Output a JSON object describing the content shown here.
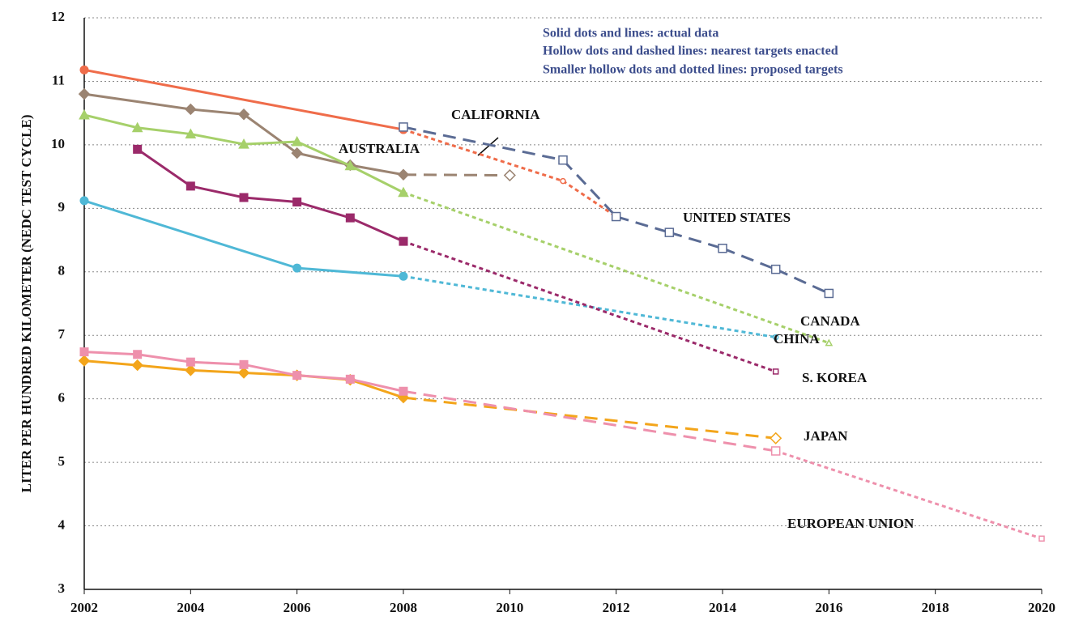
{
  "chart_data": {
    "type": "line",
    "y_label": "LITER PER HUNDRED KILOMETER (NEDC TEST CYCLE)",
    "annotations": [
      "Solid dots and lines: actual data",
      "Hollow dots and dashed lines: nearest targets enacted",
      "Smaller hollow dots and dotted lines: proposed targets"
    ],
    "xlim": [
      2002,
      2020
    ],
    "xticks": [
      2002,
      2004,
      2006,
      2008,
      2010,
      2012,
      2014,
      2016,
      2018,
      2020
    ],
    "ylim": [
      3,
      12
    ],
    "yticks": [
      3,
      4,
      5,
      6,
      7,
      8,
      9,
      10,
      11,
      12
    ],
    "grid": true,
    "series": [
      {
        "name": "CALIFORNIA",
        "color": "#ef6c4a",
        "marker": "circle",
        "x": [
          2002,
          2008
        ],
        "values": [
          11.18,
          10.24
        ],
        "targets": [
          {
            "style": "dotted",
            "x": [
              2011,
              2012
            ],
            "values": [
              9.43,
              8.87
            ]
          }
        ]
      },
      {
        "name": "UNITED STATES",
        "color": "#5a6b94",
        "marker": "square",
        "x": [],
        "values": [],
        "targets": [
          {
            "style": "dashed",
            "x": [
              2008,
              2011,
              2012,
              2013,
              2014,
              2015,
              2016
            ],
            "values": [
              10.28,
              9.76,
              8.87,
              8.62,
              8.37,
              8.04,
              7.66
            ]
          }
        ]
      },
      {
        "name": "AUSTRALIA",
        "color": "#9b8472",
        "marker": "diamond",
        "x": [
          2002,
          2004,
          2005,
          2006,
          2007,
          2008
        ],
        "values": [
          10.8,
          10.56,
          10.48,
          9.87,
          9.68,
          9.53
        ],
        "targets": [
          {
            "style": "dashed",
            "x": [
              2010
            ],
            "values": [
              9.52
            ]
          }
        ]
      },
      {
        "name": "CANADA",
        "color": "#a6d06a",
        "marker": "triangle",
        "x": [
          2002,
          2003,
          2004,
          2005,
          2006,
          2007,
          2008
        ],
        "values": [
          10.47,
          10.27,
          10.17,
          10.01,
          10.05,
          9.67,
          9.25
        ],
        "targets": [
          {
            "style": "dotted",
            "x": [
              2016
            ],
            "values": [
              6.88
            ]
          }
        ]
      },
      {
        "name": "CHINA",
        "color": "#4fb8d6",
        "marker": "circle",
        "x": [
          2002,
          2006,
          2008
        ],
        "values": [
          9.12,
          8.06,
          7.93
        ],
        "targets": [
          {
            "style": "dotted",
            "x": [
              2015
            ],
            "values": [
              6.97
            ]
          }
        ]
      },
      {
        "name": "S. KOREA",
        "color": "#9b2a6a",
        "marker": "square",
        "x": [
          2003,
          2004,
          2005,
          2006,
          2007,
          2008
        ],
        "values": [
          9.93,
          9.35,
          9.17,
          9.1,
          8.85,
          8.48
        ],
        "targets": [
          {
            "style": "dotted",
            "x": [
              2015
            ],
            "values": [
              6.43
            ]
          }
        ]
      },
      {
        "name": "JAPAN",
        "color": "#f3a51b",
        "marker": "diamond",
        "x": [
          2002,
          2003,
          2004,
          2005,
          2006,
          2007,
          2008
        ],
        "values": [
          6.6,
          6.53,
          6.45,
          6.41,
          6.37,
          6.3,
          6.02
        ],
        "targets": [
          {
            "style": "dashed",
            "x": [
              2015
            ],
            "values": [
              5.38
            ]
          }
        ]
      },
      {
        "name": "EUROPEAN UNION",
        "color": "#ee90ac",
        "marker": "square",
        "x": [
          2002,
          2003,
          2004,
          2005,
          2006,
          2007,
          2008
        ],
        "values": [
          6.74,
          6.7,
          6.58,
          6.54,
          6.37,
          6.31,
          6.12
        ],
        "targets": [
          {
            "style": "dashed",
            "x": [
              2015
            ],
            "values": [
              5.18
            ]
          },
          {
            "style": "dotted",
            "x": [
              2020
            ],
            "values": [
              3.8
            ]
          }
        ]
      }
    ]
  }
}
